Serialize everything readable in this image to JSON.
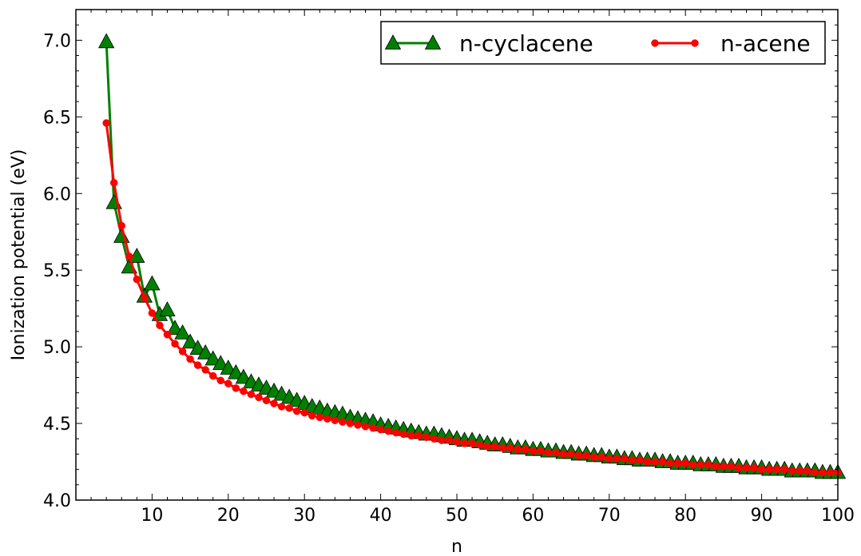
{
  "chart_data": {
    "type": "line",
    "title": "",
    "xlabel": "n",
    "ylabel": "Ionization potential (eV)",
    "xlim": [
      0,
      100
    ],
    "ylim": [
      4.0,
      7.2
    ],
    "xticks": [
      10,
      20,
      30,
      40,
      50,
      60,
      70,
      80,
      90,
      100
    ],
    "xtick_labels": [
      "10",
      "20",
      "30",
      "40",
      "50",
      "60",
      "70",
      "80",
      "90",
      "100"
    ],
    "yticks": [
      4.0,
      4.5,
      5.0,
      5.5,
      6.0,
      6.5,
      7.0
    ],
    "ytick_labels": [
      "4.0",
      "4.5",
      "5.0",
      "5.5",
      "6.0",
      "6.5",
      "7.0"
    ],
    "grid": false,
    "legend_position": "top-right",
    "series": [
      {
        "name": "n-cyclacene",
        "color": "#008000",
        "marker": "triangle",
        "x": [
          4,
          5,
          6,
          7,
          8,
          9,
          10,
          11,
          12,
          13,
          14,
          15,
          16,
          17,
          18,
          19,
          20,
          21,
          22,
          23,
          24,
          25,
          26,
          27,
          28,
          29,
          30,
          31,
          32,
          33,
          34,
          35,
          36,
          37,
          38,
          39,
          40,
          41,
          42,
          43,
          44,
          45,
          46,
          47,
          48,
          49,
          50,
          51,
          52,
          53,
          54,
          55,
          56,
          57,
          58,
          59,
          60,
          61,
          62,
          63,
          64,
          65,
          66,
          67,
          68,
          69,
          70,
          71,
          72,
          73,
          74,
          75,
          76,
          77,
          78,
          79,
          80,
          81,
          82,
          83,
          84,
          85,
          86,
          87,
          88,
          89,
          90,
          91,
          92,
          93,
          94,
          95,
          96,
          97,
          98,
          99,
          100
        ],
        "y": [
          6.99,
          5.94,
          5.72,
          5.52,
          5.59,
          5.33,
          5.41,
          5.21,
          5.24,
          5.12,
          5.09,
          5.03,
          4.99,
          4.96,
          4.92,
          4.89,
          4.86,
          4.83,
          4.8,
          4.77,
          4.75,
          4.73,
          4.71,
          4.69,
          4.67,
          4.65,
          4.63,
          4.61,
          4.6,
          4.58,
          4.57,
          4.56,
          4.54,
          4.53,
          4.52,
          4.51,
          4.49,
          4.48,
          4.47,
          4.46,
          4.45,
          4.44,
          4.43,
          4.43,
          4.42,
          4.41,
          4.4,
          4.39,
          4.39,
          4.38,
          4.37,
          4.36,
          4.36,
          4.35,
          4.34,
          4.34,
          4.33,
          4.33,
          4.32,
          4.32,
          4.31,
          4.31,
          4.3,
          4.3,
          4.29,
          4.29,
          4.28,
          4.28,
          4.27,
          4.27,
          4.26,
          4.26,
          4.26,
          4.25,
          4.25,
          4.24,
          4.24,
          4.24,
          4.23,
          4.23,
          4.23,
          4.22,
          4.22,
          4.22,
          4.21,
          4.21,
          4.21,
          4.2,
          4.2,
          4.2,
          4.19,
          4.19,
          4.19,
          4.19,
          4.18,
          4.18,
          4.18
        ]
      },
      {
        "name": "n-acene",
        "color": "#ff0000",
        "marker": "circle",
        "x": [
          4,
          5,
          6,
          7,
          8,
          9,
          10,
          11,
          12,
          13,
          14,
          15,
          16,
          17,
          18,
          19,
          20,
          21,
          22,
          23,
          24,
          25,
          26,
          27,
          28,
          29,
          30,
          31,
          32,
          33,
          34,
          35,
          36,
          37,
          38,
          39,
          40,
          41,
          42,
          43,
          44,
          45,
          46,
          47,
          48,
          49,
          50,
          51,
          52,
          53,
          54,
          55,
          56,
          57,
          58,
          59,
          60,
          61,
          62,
          63,
          64,
          65,
          66,
          67,
          68,
          69,
          70,
          71,
          72,
          73,
          74,
          75,
          76,
          77,
          78,
          79,
          80,
          81,
          82,
          83,
          84,
          85,
          86,
          87,
          88,
          89,
          90,
          91,
          92,
          93,
          94,
          95,
          96,
          97,
          98,
          99,
          100
        ],
        "y": [
          6.46,
          6.07,
          5.79,
          5.59,
          5.44,
          5.32,
          5.22,
          5.14,
          5.08,
          5.02,
          4.97,
          4.92,
          4.88,
          4.85,
          4.81,
          4.78,
          4.76,
          4.73,
          4.71,
          4.69,
          4.67,
          4.65,
          4.63,
          4.61,
          4.6,
          4.58,
          4.57,
          4.55,
          4.54,
          4.53,
          4.52,
          4.51,
          4.5,
          4.49,
          4.48,
          4.47,
          4.46,
          4.45,
          4.44,
          4.43,
          4.42,
          4.42,
          4.41,
          4.4,
          4.39,
          4.39,
          4.38,
          4.37,
          4.37,
          4.36,
          4.35,
          4.35,
          4.34,
          4.34,
          4.33,
          4.33,
          4.32,
          4.32,
          4.31,
          4.31,
          4.3,
          4.3,
          4.29,
          4.29,
          4.28,
          4.28,
          4.27,
          4.27,
          4.27,
          4.26,
          4.26,
          4.25,
          4.25,
          4.25,
          4.24,
          4.24,
          4.24,
          4.23,
          4.23,
          4.23,
          4.22,
          4.22,
          4.22,
          4.21,
          4.21,
          4.21,
          4.2,
          4.2,
          4.2,
          4.2,
          4.19,
          4.19,
          4.19,
          4.18,
          4.18,
          4.18,
          4.18
        ]
      }
    ]
  }
}
